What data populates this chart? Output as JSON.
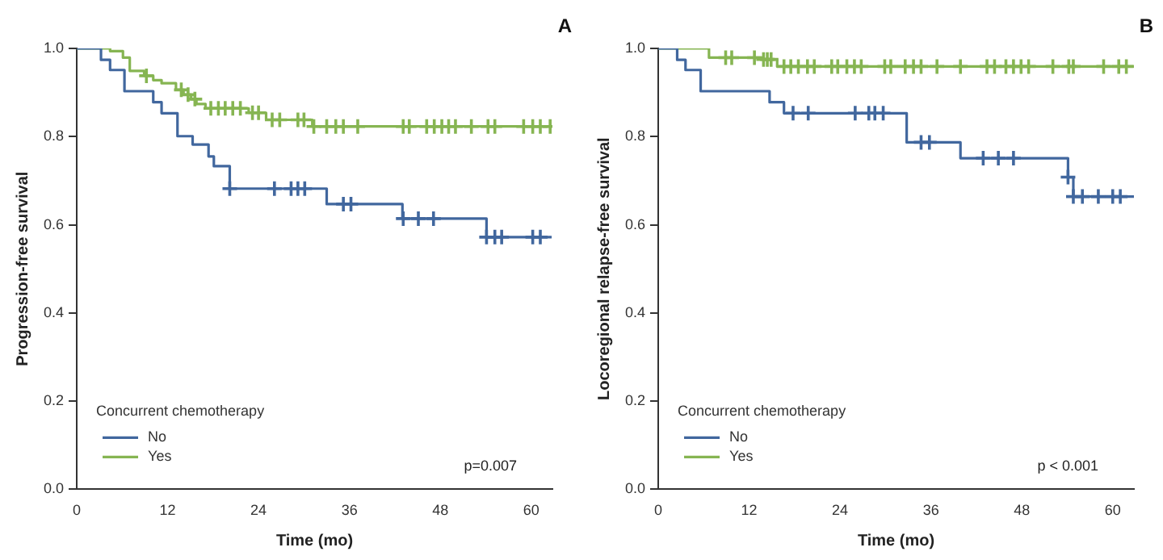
{
  "chart_data": [
    {
      "type": "step",
      "title": "A",
      "xlabel": "Time (mo)",
      "ylabel": "Progression-free survival",
      "legend_title": "Concurrent chemotherapy",
      "legend": "bottom left",
      "annotations": [
        "p=0.007"
      ],
      "xlim": [
        0,
        62.8
      ],
      "xticks": [
        0,
        12,
        24,
        36,
        48,
        60
      ],
      "ylim": [
        0,
        1
      ],
      "yticks": [
        {
          "value": 0,
          "label": "0.0"
        },
        {
          "value": 0.2,
          "label": "0.2"
        },
        {
          "value": 0.4,
          "label": "0.4"
        },
        {
          "value": 0.6,
          "label": "0.6"
        },
        {
          "value": 0.8,
          "label": "0.8"
        },
        {
          "value": 1,
          "label": "1.0"
        }
      ],
      "series": [
        {
          "name": "No",
          "color": "#41679e",
          "x": [
            0,
            3.2,
            4.4,
            6.3,
            10.1,
            11.2,
            13.3,
            15.3,
            17.4,
            18.1,
            20.2,
            33.0,
            43.0,
            54.1,
            62.7
          ],
          "values": [
            1,
            0.974,
            0.951,
            0.903,
            0.878,
            0.853,
            0.801,
            0.782,
            0.755,
            0.733,
            0.682,
            0.647,
            0.614,
            0.572,
            0.572
          ]
        },
        {
          "name": "Yes",
          "color": "#86b552",
          "x": [
            0,
            4.4,
            6.1,
            7.0,
            8.9,
            10.1,
            11.2,
            13.1,
            14.1,
            15.1,
            15.8,
            17.0,
            22.7,
            25.0,
            31.1,
            62.7
          ],
          "values": [
            1,
            0.994,
            0.979,
            0.949,
            0.938,
            0.928,
            0.921,
            0.906,
            0.895,
            0.885,
            0.874,
            0.864,
            0.854,
            0.838,
            0.823,
            0.823
          ]
        },
        {
          "type": "scatter",
          "marker": "cross",
          "color": "#41679e",
          "x": [
            20.2,
            26.1,
            28.3,
            29.2,
            30.1,
            35.2,
            36.2,
            43.1,
            45.1,
            47.1,
            54.1,
            55.2,
            56.1,
            60.2,
            61.2
          ],
          "values": [
            0.682,
            0.682,
            0.682,
            0.682,
            0.682,
            0.647,
            0.647,
            0.614,
            0.614,
            0.614,
            0.572,
            0.572,
            0.572,
            0.572,
            0.572
          ]
        },
        {
          "type": "scatter",
          "marker": "cross",
          "color": "#86b552",
          "x": [
            9.2,
            13.8,
            14.7,
            15.6,
            17.7,
            18.7,
            19.6,
            20.6,
            21.6,
            23.2,
            24.0,
            25.8,
            26.8,
            29.2,
            30.0,
            31.3,
            33.0,
            34.2,
            35.2,
            37.1,
            43.1,
            43.9,
            46.2,
            47.2,
            48.2,
            49.1,
            50.0,
            52.1,
            54.3,
            55.2,
            59.0,
            60.2,
            61.2,
            62.5
          ],
          "values": [
            0.938,
            0.906,
            0.895,
            0.885,
            0.864,
            0.864,
            0.864,
            0.864,
            0.864,
            0.854,
            0.854,
            0.838,
            0.838,
            0.838,
            0.838,
            0.823,
            0.823,
            0.823,
            0.823,
            0.823,
            0.823,
            0.823,
            0.823,
            0.823,
            0.823,
            0.823,
            0.823,
            0.823,
            0.823,
            0.823,
            0.823,
            0.823,
            0.823,
            0.823
          ]
        }
      ]
    },
    {
      "type": "step",
      "title": "B",
      "xlabel": "Time (mo)",
      "ylabel": "Locoregional relapse-free survival",
      "legend_title": "Concurrent chemotherapy",
      "legend": "bottom left",
      "annotations": [
        "p < 0.001"
      ],
      "xlim": [
        0,
        62.8
      ],
      "xticks": [
        0,
        12,
        24,
        36,
        48,
        60
      ],
      "ylim": [
        0,
        1
      ],
      "yticks": [
        {
          "value": 0,
          "label": "0.0"
        },
        {
          "value": 0.2,
          "label": "0.2"
        },
        {
          "value": 0.4,
          "label": "0.4"
        },
        {
          "value": 0.6,
          "label": "0.6"
        },
        {
          "value": 0.8,
          "label": "0.8"
        },
        {
          "value": 1,
          "label": "1.0"
        }
      ],
      "series": [
        {
          "name": "No",
          "color": "#41679e",
          "x": [
            0,
            2.5,
            3.6,
            5.6,
            14.7,
            16.6,
            32.8,
            39.9,
            54.1,
            54.8,
            62.8
          ],
          "values": [
            1,
            0.974,
            0.951,
            0.903,
            0.878,
            0.853,
            0.787,
            0.751,
            0.708,
            0.664,
            0.664
          ]
        },
        {
          "name": "Yes",
          "color": "#86b552",
          "x": [
            0,
            6.7,
            13.7,
            15.7,
            62.8
          ],
          "values": [
            1,
            0.979,
            0.975,
            0.959,
            0.959
          ]
        },
        {
          "type": "scatter",
          "marker": "cross",
          "color": "#41679e",
          "x": [
            17.8,
            19.8,
            26.0,
            27.8,
            28.6,
            29.7,
            34.7,
            35.8,
            42.9,
            44.9,
            46.9,
            54.1,
            54.8,
            56.0,
            58.1,
            60.0,
            61.0
          ],
          "values": [
            0.853,
            0.853,
            0.853,
            0.853,
            0.853,
            0.853,
            0.787,
            0.787,
            0.751,
            0.751,
            0.751,
            0.708,
            0.664,
            0.664,
            0.664,
            0.664,
            0.664
          ]
        },
        {
          "type": "scatter",
          "marker": "cross",
          "color": "#86b552",
          "x": [
            8.9,
            9.7,
            12.7,
            13.9,
            14.4,
            14.9,
            16.6,
            17.5,
            18.5,
            19.7,
            20.6,
            22.9,
            23.7,
            24.9,
            25.9,
            26.8,
            29.9,
            30.7,
            32.6,
            33.7,
            34.7,
            36.8,
            39.9,
            43.4,
            44.4,
            45.9,
            46.9,
            47.9,
            48.9,
            52.1,
            54.2,
            54.8,
            58.8,
            60.8,
            61.8
          ],
          "values": [
            0.979,
            0.979,
            0.979,
            0.975,
            0.975,
            0.975,
            0.959,
            0.959,
            0.959,
            0.959,
            0.959,
            0.959,
            0.959,
            0.959,
            0.959,
            0.959,
            0.959,
            0.959,
            0.959,
            0.959,
            0.959,
            0.959,
            0.959,
            0.959,
            0.959,
            0.959,
            0.959,
            0.959,
            0.959,
            0.959,
            0.959,
            0.959,
            0.959,
            0.959,
            0.959
          ]
        }
      ]
    }
  ]
}
